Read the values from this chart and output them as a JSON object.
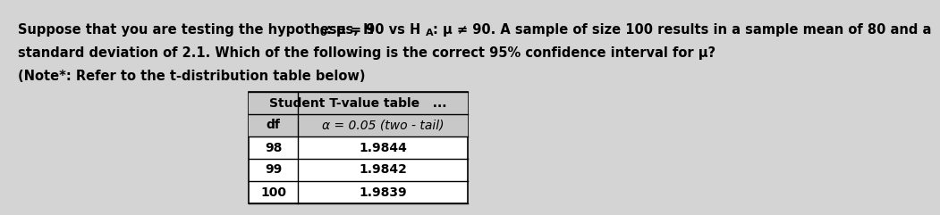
{
  "line1_prefix": "Suppose that you are testing the hypotheses, H",
  "line1_mid": ": μ = 90 vs H",
  "line1_end": ": μ ≠ 90. A sample of size 100 results in a sample mean of 80 and a",
  "line2": "standard deviation of 2.1. Which of the following is the correct 95% confidence interval for μ?",
  "line3": "(Note*: Refer to the t-distribution table below)",
  "table_title": "Student T-value table   ...",
  "col1_header": "df",
  "col2_header": "α = 0.05 (two - tail)",
  "rows": [
    [
      "98",
      "1.9844"
    ],
    [
      "99",
      "1.9842"
    ],
    [
      "100",
      "1.9839"
    ]
  ],
  "bg_color": "#d4d4d4",
  "table_bg": "#ffffff",
  "header_bg": "#c8c8c8",
  "text_color": "#000000",
  "font_size_text": 10.5,
  "font_size_table": 10.0,
  "sub_font_size": 8.0
}
